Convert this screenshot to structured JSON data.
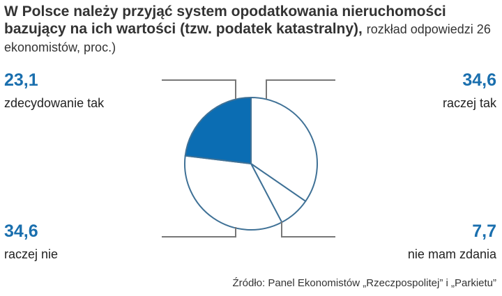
{
  "chart_data": {
    "type": "pie",
    "title": "W Polsce należy przyjąć system opodatkowania nieruchomości bazujący na ich wartości (tzw. podatek katastralny),",
    "subtitle": "rozkład odpowiedzi 26 ekonomistów, proc.)",
    "slices": [
      {
        "label": "raczej tak",
        "value": 34.6,
        "value_text": "34,6",
        "color": "#ffffff"
      },
      {
        "label": "nie mam zdania",
        "value": 7.7,
        "value_text": "7,7",
        "color": "#ffffff"
      },
      {
        "label": "raczej nie",
        "value": 34.6,
        "value_text": "34,6",
        "color": "#ffffff"
      },
      {
        "label": "zdecydowanie tak",
        "value": 23.1,
        "value_text": "23,1",
        "color": "#0b6db3"
      }
    ],
    "outline_color": "#3f7196",
    "value_color": "#1a6fae",
    "source": "Źródło: Panel Ekonomistów „Rzeczpospolitej” i „Parkietu”"
  }
}
